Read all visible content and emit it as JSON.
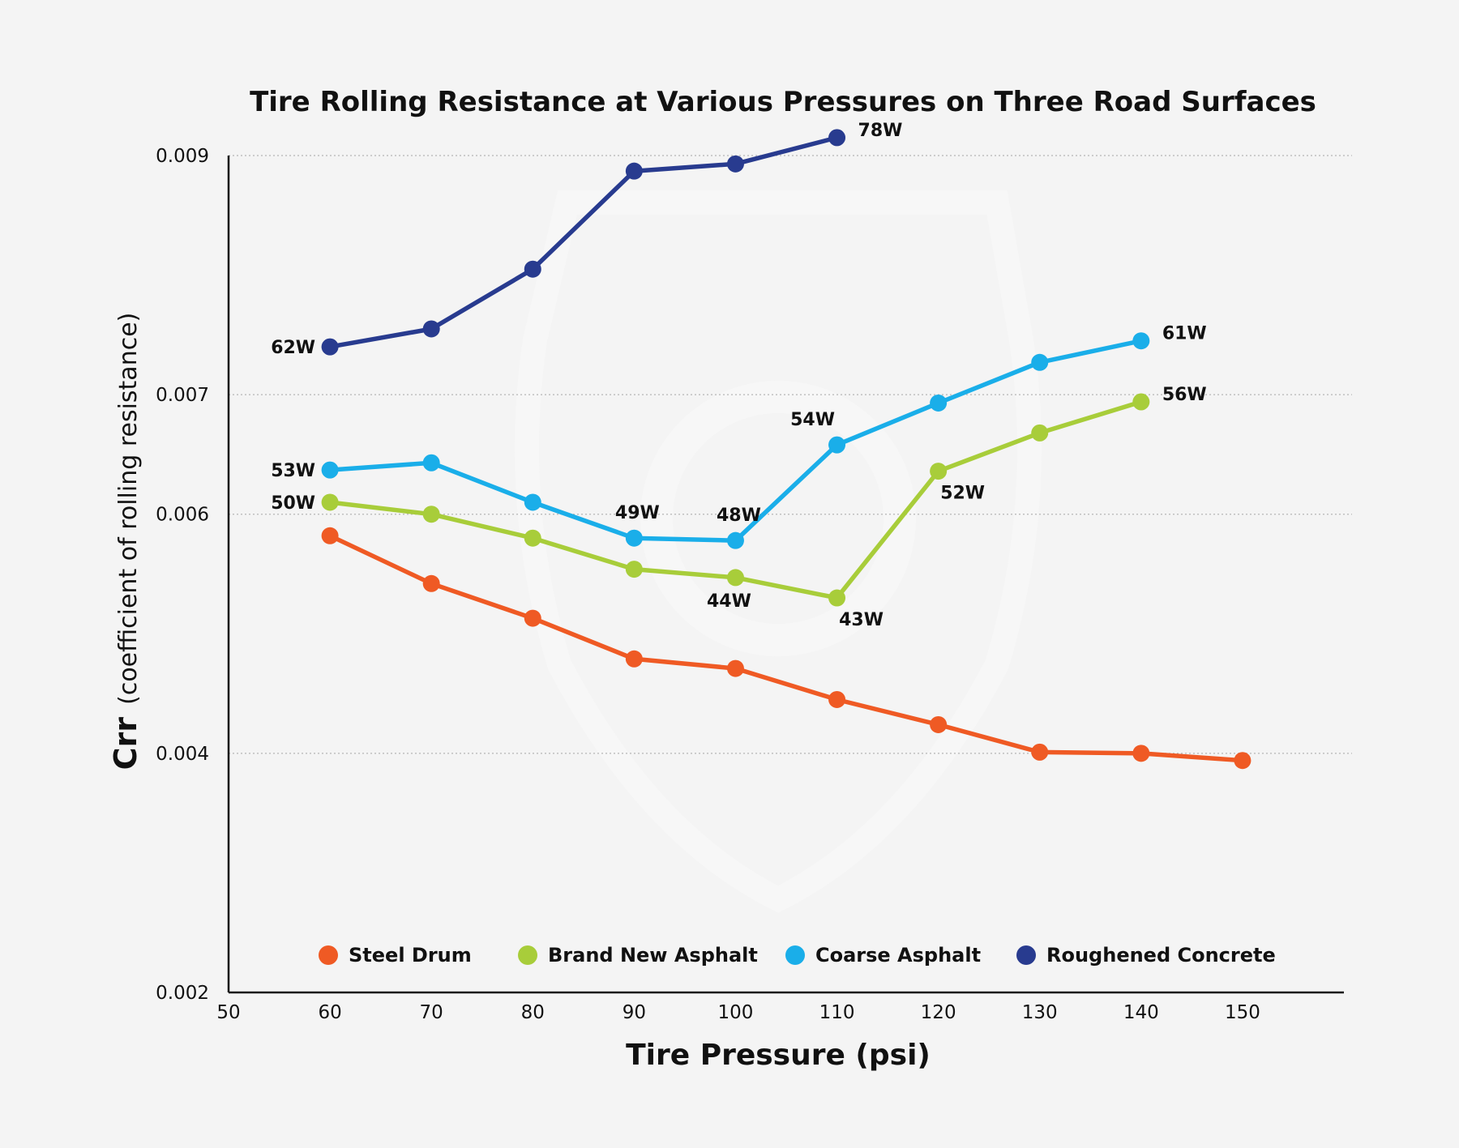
{
  "chart_data": {
    "type": "line",
    "title": "Tire Rolling Resistance at Various Pressures on Three Road Surfaces",
    "xlabel": "Tire Pressure (psi)",
    "ylabel": {
      "strong": "Crr",
      "rest": "(coefficient of rolling resistance)"
    },
    "xlim": [
      50,
      160
    ],
    "ylim": [
      0.002,
      0.009
    ],
    "x_ticks": [
      {
        "value": 50,
        "label": "50"
      },
      {
        "value": 60,
        "label": "60"
      },
      {
        "value": 70,
        "label": "70"
      },
      {
        "value": 80,
        "label": "80"
      },
      {
        "value": 90,
        "label": "90"
      },
      {
        "value": 100,
        "label": "100"
      },
      {
        "value": 110,
        "label": "110"
      },
      {
        "value": 120,
        "label": "120"
      },
      {
        "value": 130,
        "label": "130"
      },
      {
        "value": 140,
        "label": "140"
      },
      {
        "value": 150,
        "label": "150"
      }
    ],
    "y_ticks": [
      {
        "value": 0.002,
        "label": "0.002"
      },
      {
        "value": 0.004,
        "label": "0.004"
      },
      {
        "value": 0.006,
        "label": "0.006"
      },
      {
        "value": 0.007,
        "label": "0.007"
      },
      {
        "value": 0.009,
        "label": "0.009"
      }
    ],
    "gridlines_y": [
      0.004,
      0.006,
      0.007,
      0.009
    ],
    "legend_position": "bottom",
    "series": [
      {
        "name": "Steel Drum",
        "color": "#ef5a24",
        "points": [
          {
            "x": 60,
            "y": 0.00582
          },
          {
            "x": 70,
            "y": 0.00542
          },
          {
            "x": 80,
            "y": 0.00513
          },
          {
            "x": 90,
            "y": 0.00479
          },
          {
            "x": 100,
            "y": 0.00471
          },
          {
            "x": 110,
            "y": 0.00445
          },
          {
            "x": 120,
            "y": 0.00424
          },
          {
            "x": 130,
            "y": 0.00401
          },
          {
            "x": 140,
            "y": 0.004
          },
          {
            "x": 150,
            "y": 0.00394
          }
        ]
      },
      {
        "name": "Brand New Asphalt",
        "color": "#a8cd3a",
        "points": [
          {
            "x": 60,
            "y": 0.0061,
            "label": "50W",
            "label_pos": "left"
          },
          {
            "x": 70,
            "y": 0.006
          },
          {
            "x": 80,
            "y": 0.0058
          },
          {
            "x": 90,
            "y": 0.00554
          },
          {
            "x": 100,
            "y": 0.00547,
            "label": "44W",
            "label_pos": "below"
          },
          {
            "x": 110,
            "y": 0.0053,
            "label": "43W",
            "label_pos": "below-right"
          },
          {
            "x": 120,
            "y": 0.00636,
            "label": "52W",
            "label_pos": "below-right"
          },
          {
            "x": 130,
            "y": 0.00668
          },
          {
            "x": 140,
            "y": 0.00694,
            "label": "56W",
            "label_pos": "right"
          }
        ]
      },
      {
        "name": "Coarse Asphalt",
        "color": "#1aaee9",
        "points": [
          {
            "x": 60,
            "y": 0.00637,
            "label": "53W",
            "label_pos": "left"
          },
          {
            "x": 70,
            "y": 0.00643
          },
          {
            "x": 80,
            "y": 0.0061
          },
          {
            "x": 90,
            "y": 0.0058,
            "label": "49W",
            "label_pos": "above"
          },
          {
            "x": 100,
            "y": 0.00578,
            "label": "48W",
            "label_pos": "above"
          },
          {
            "x": 110,
            "y": 0.00658,
            "label": "54W",
            "label_pos": "above-left"
          },
          {
            "x": 120,
            "y": 0.00693
          },
          {
            "x": 130,
            "y": 0.00727
          },
          {
            "x": 140,
            "y": 0.00745,
            "label": "61W",
            "label_pos": "right"
          }
        ]
      },
      {
        "name": "Roughened Concrete",
        "color": "#283b8f",
        "points": [
          {
            "x": 60,
            "y": 0.0074,
            "label": "62W",
            "label_pos": "left"
          },
          {
            "x": 70,
            "y": 0.00755
          },
          {
            "x": 80,
            "y": 0.00805
          },
          {
            "x": 90,
            "y": 0.00887
          },
          {
            "x": 100,
            "y": 0.00893
          },
          {
            "x": 110,
            "y": 0.00915,
            "label": "78W",
            "label_pos": "right"
          }
        ]
      }
    ]
  }
}
